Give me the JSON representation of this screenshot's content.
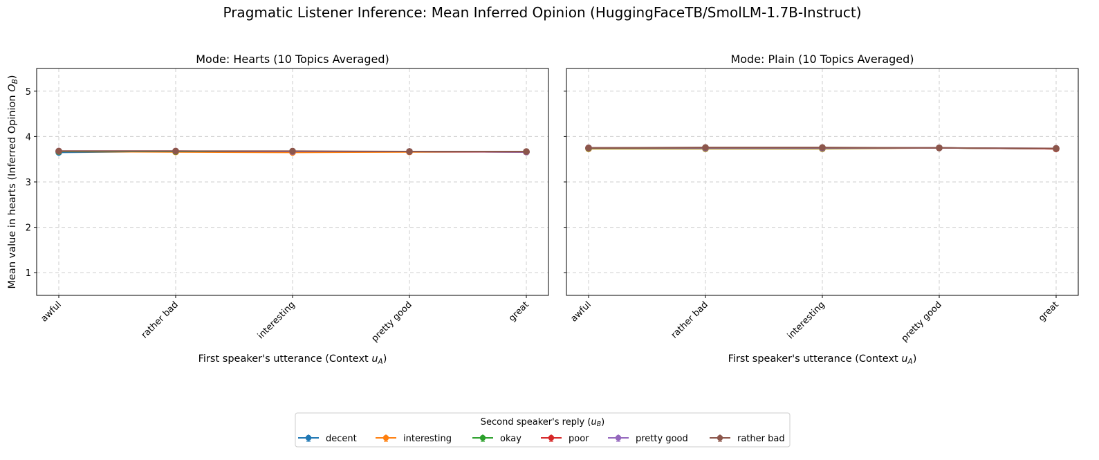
{
  "figure": {
    "title": "Pragmatic Listener Inference: Mean Inferred Opinion (HuggingFaceTB/SmolLM-1.7B-Instruct)"
  },
  "legend": {
    "title_prefix": "Second speaker's reply (",
    "title_var": "u",
    "title_sub": "B",
    "title_suffix": ")",
    "placement": "lower-center"
  },
  "chart_data": [
    {
      "type": "line",
      "title": "Mode: Hearts (10 Topics Averaged)",
      "xlabel_prefix": "First speaker's utterance (Context ",
      "xlabel_var": "u",
      "xlabel_sub": "A",
      "xlabel_suffix": ")",
      "ylabel_prefix": "Mean value in hearts (Inferred Opinion ",
      "ylabel_var": "O",
      "ylabel_sub": "B",
      "ylabel_suffix": ")",
      "categories": [
        "awful",
        "rather bad",
        "interesting",
        "pretty good",
        "great"
      ],
      "ylim": [
        0.5,
        5.5
      ],
      "yticks": [
        "1",
        "2",
        "3",
        "4",
        "5"
      ],
      "grid": true,
      "series": [
        {
          "name": "decent",
          "color": "#1f77b4",
          "values": [
            3.65,
            3.67,
            3.67,
            3.67,
            3.66
          ]
        },
        {
          "name": "interesting",
          "color": "#ff7f0e",
          "values": [
            3.67,
            3.66,
            3.65,
            3.66,
            3.66
          ]
        },
        {
          "name": "okay",
          "color": "#2ca02c",
          "values": [
            3.67,
            3.67,
            3.67,
            3.67,
            3.66
          ]
        },
        {
          "name": "poor",
          "color": "#d62728",
          "values": [
            3.68,
            3.68,
            3.67,
            3.67,
            3.66
          ]
        },
        {
          "name": "pretty good",
          "color": "#9467bd",
          "values": [
            3.68,
            3.68,
            3.67,
            3.67,
            3.66
          ]
        },
        {
          "name": "rather bad",
          "color": "#8c564b",
          "values": [
            3.68,
            3.68,
            3.68,
            3.67,
            3.67
          ]
        }
      ]
    },
    {
      "type": "line",
      "title": "Mode: Plain (10 Topics Averaged)",
      "xlabel_prefix": "First speaker's utterance (Context ",
      "xlabel_var": "u",
      "xlabel_sub": "A",
      "xlabel_suffix": ")",
      "categories": [
        "awful",
        "rather bad",
        "interesting",
        "pretty good",
        "great"
      ],
      "ylim": [
        0.5,
        5.5
      ],
      "yticks": [
        "1",
        "2",
        "3",
        "4",
        "5"
      ],
      "grid": true,
      "series": [
        {
          "name": "decent",
          "color": "#1f77b4",
          "values": [
            3.74,
            3.74,
            3.74,
            3.75,
            3.73
          ]
        },
        {
          "name": "interesting",
          "color": "#ff7f0e",
          "values": [
            3.73,
            3.73,
            3.73,
            3.75,
            3.73
          ]
        },
        {
          "name": "okay",
          "color": "#2ca02c",
          "values": [
            3.74,
            3.74,
            3.74,
            3.75,
            3.73
          ]
        },
        {
          "name": "poor",
          "color": "#d62728",
          "values": [
            3.75,
            3.75,
            3.75,
            3.75,
            3.73
          ]
        },
        {
          "name": "pretty good",
          "color": "#9467bd",
          "values": [
            3.75,
            3.75,
            3.75,
            3.75,
            3.74
          ]
        },
        {
          "name": "rather bad",
          "color": "#8c564b",
          "values": [
            3.75,
            3.76,
            3.76,
            3.75,
            3.74
          ]
        }
      ]
    }
  ]
}
